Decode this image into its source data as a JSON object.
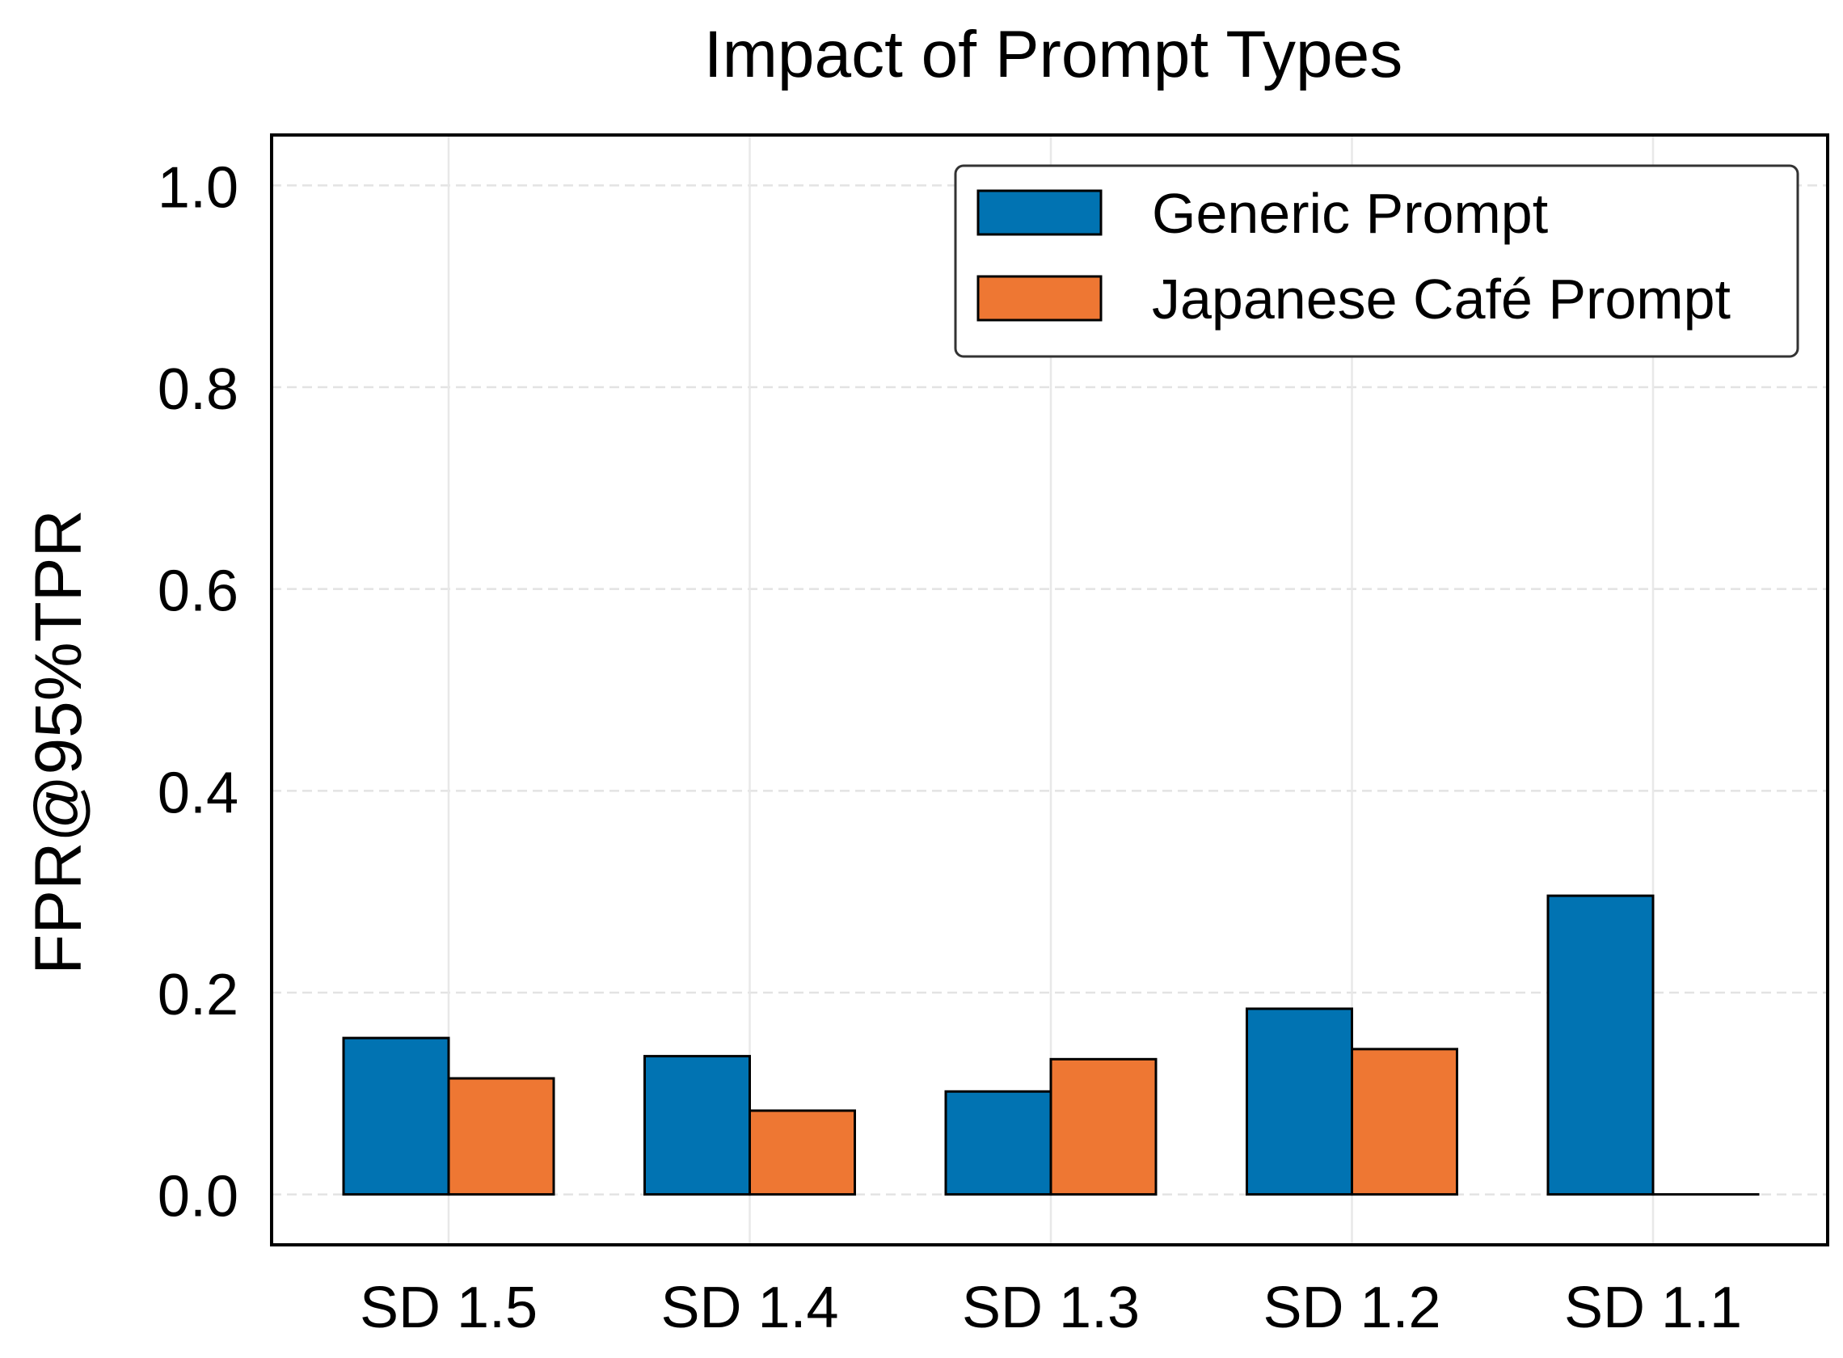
{
  "chart_data": {
    "type": "bar",
    "title": "Impact of Prompt Types",
    "xlabel": "",
    "ylabel": "FPR@95%TPR",
    "categories": [
      "SD 1.5",
      "SD 1.4",
      "SD 1.3",
      "SD 1.2",
      "SD 1.1"
    ],
    "series": [
      {
        "name": "Generic Prompt",
        "color": "#0173b2",
        "values": [
          0.155,
          0.137,
          0.102,
          0.184,
          0.296
        ]
      },
      {
        "name": "Japanese Café Prompt",
        "color": "#ee7733",
        "values": [
          0.115,
          0.083,
          0.134,
          0.144,
          0.0
        ]
      }
    ],
    "ylim": [
      -0.05,
      1.05
    ],
    "yticks": [
      0.0,
      0.2,
      0.4,
      0.6,
      0.8,
      1.0
    ],
    "ytick_labels": [
      "0.0",
      "0.2",
      "0.4",
      "0.6",
      "0.8",
      "1.0"
    ],
    "grid": true,
    "legend_position": "top-right"
  }
}
